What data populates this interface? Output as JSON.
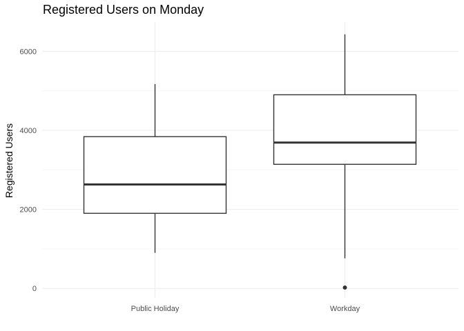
{
  "chart_data": {
    "type": "boxplot",
    "title": "Registered Users on Monday",
    "xlabel": "",
    "ylabel": "Registered Users",
    "ylim": [
      -200,
      6800
    ],
    "yticks": [
      0,
      2000,
      4000,
      6000
    ],
    "grid": true,
    "legend": "none",
    "categories": [
      "Public Holiday",
      "Workday"
    ],
    "boxes": [
      {
        "category": "Public Holiday",
        "whisker_low": 900,
        "q1": 1900,
        "median": 2630,
        "q3": 3840,
        "whisker_high": 5170,
        "outliers": []
      },
      {
        "category": "Workday",
        "whisker_low": 760,
        "q1": 3140,
        "median": 3690,
        "q3": 4900,
        "whisker_high": 6430,
        "outliers": [
          20
        ]
      }
    ],
    "colors": {
      "box_fill": "#ffffff",
      "box_line": "#333333",
      "grid_major": "#ebebeb",
      "grid_minor": "#f5f5f5",
      "tick_text": "#4d4d4d",
      "title_text": "#000000"
    }
  }
}
